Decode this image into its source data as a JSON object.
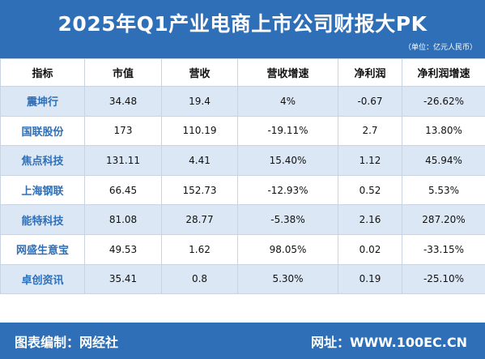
{
  "title": "2025年Q1产业电商上市公司财报大PK",
  "unit": "（单位：亿元人民币）",
  "table": {
    "headers": [
      "指标",
      "市值",
      "营收",
      "营收增速",
      "净利润",
      "净利润增速"
    ],
    "rows": [
      [
        "震坤行",
        "34.48",
        "19.4",
        "4%",
        "-0.67",
        "-26.62%"
      ],
      [
        "国联股份",
        "173",
        "110.19",
        "-19.11%",
        "2.7",
        "13.80%"
      ],
      [
        "焦点科技",
        "131.11",
        "4.41",
        "15.40%",
        "1.12",
        "45.94%"
      ],
      [
        "上海钢联",
        "66.45",
        "152.73",
        "-12.93%",
        "0.52",
        "5.53%"
      ],
      [
        "能特科技",
        "81.08",
        "28.77",
        "-5.38%",
        "2.16",
        "287.20%"
      ],
      [
        "网盛生意宝",
        "49.53",
        "1.62",
        "98.05%",
        "0.02",
        "-33.15%"
      ],
      [
        "卓创资讯",
        "35.41",
        "0.8",
        "5.30%",
        "0.19",
        "-25.10%"
      ]
    ]
  },
  "footer": {
    "left": "图表编制：网经社",
    "right": "网址：WWW.100EC.CN"
  }
}
